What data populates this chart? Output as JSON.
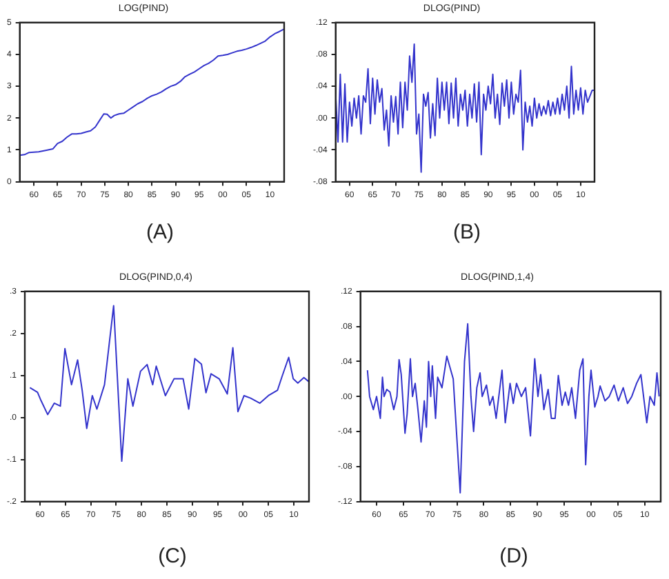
{
  "chart_data": [
    {
      "type": "line",
      "title": "LOG(PIND)",
      "annotations": [
        "(A)"
      ],
      "grid": false,
      "legend": false,
      "xlim": [
        1957,
        2013
      ],
      "xticks": [
        {
          "value": 1960,
          "label": "60"
        },
        {
          "value": 1965,
          "label": "65"
        },
        {
          "value": 1970,
          "label": "70"
        },
        {
          "value": 1975,
          "label": "75"
        },
        {
          "value": 1980,
          "label": "80"
        },
        {
          "value": 1985,
          "label": "85"
        },
        {
          "value": 1990,
          "label": "90"
        },
        {
          "value": 1995,
          "label": "95"
        },
        {
          "value": 2000,
          "label": "00"
        },
        {
          "value": 2005,
          "label": "05"
        },
        {
          "value": 2010,
          "label": "10"
        }
      ],
      "ylim": [
        0,
        5
      ],
      "yticks": [
        0,
        1,
        2,
        3,
        4,
        5
      ],
      "series": [
        {
          "color": "#3333cc",
          "x": [
            1957,
            1958,
            1959,
            1961,
            1963,
            1964,
            1965,
            1966,
            1967,
            1968,
            1969,
            1970,
            1971,
            1972,
            1973,
            1974,
            1974.8,
            1975.5,
            1976.3,
            1977,
            1978,
            1979,
            1980,
            1981,
            1982,
            1983,
            1984,
            1985,
            1986,
            1987,
            1988,
            1989,
            1990,
            1991,
            1992,
            1993,
            1994,
            1995,
            1996,
            1997,
            1998,
            1999,
            2000,
            2001,
            2002,
            2003,
            2004,
            2005,
            2006,
            2007,
            2008,
            2009,
            2010,
            2011,
            2012,
            2013
          ],
          "values": [
            0.83,
            0.85,
            0.92,
            0.94,
            1.0,
            1.03,
            1.2,
            1.27,
            1.4,
            1.5,
            1.5,
            1.52,
            1.56,
            1.6,
            1.72,
            1.95,
            2.13,
            2.12,
            2.0,
            2.08,
            2.13,
            2.15,
            2.25,
            2.35,
            2.45,
            2.52,
            2.62,
            2.7,
            2.75,
            2.82,
            2.92,
            3.0,
            3.05,
            3.15,
            3.3,
            3.38,
            3.45,
            3.55,
            3.65,
            3.72,
            3.82,
            3.95,
            3.97,
            4.0,
            4.05,
            4.1,
            4.13,
            4.17,
            4.22,
            4.28,
            4.35,
            4.42,
            4.55,
            4.65,
            4.72,
            4.8
          ]
        }
      ]
    },
    {
      "type": "line",
      "title": "DLOG(PIND)",
      "annotations": [
        "(B)"
      ],
      "grid": false,
      "legend": false,
      "xlim": [
        1957,
        2013
      ],
      "xticks": [
        {
          "value": 1960,
          "label": "60"
        },
        {
          "value": 1965,
          "label": "65"
        },
        {
          "value": 1970,
          "label": "70"
        },
        {
          "value": 1975,
          "label": "75"
        },
        {
          "value": 1980,
          "label": "80"
        },
        {
          "value": 1985,
          "label": "85"
        },
        {
          "value": 1990,
          "label": "90"
        },
        {
          "value": 1995,
          "label": "95"
        },
        {
          "value": 2000,
          "label": "00"
        },
        {
          "value": 2005,
          "label": "05"
        },
        {
          "value": 2010,
          "label": "10"
        }
      ],
      "ylim": [
        -0.08,
        0.12
      ],
      "yticks": [
        {
          "value": -0.08,
          "label": "-.08"
        },
        {
          "value": -0.04,
          "label": "-.04"
        },
        {
          "value": 0,
          "label": ".00"
        },
        {
          "value": 0.04,
          "label": ".04"
        },
        {
          "value": 0.08,
          "label": ".08"
        },
        {
          "value": 0.12,
          "label": ".12"
        }
      ],
      "series": [
        {
          "color": "#3333cc",
          "x": [
            1957,
            1957.5,
            1958,
            1958.5,
            1959,
            1959.5,
            1960,
            1960.5,
            1961,
            1961.5,
            1962,
            1962.5,
            1963,
            1963.5,
            1964,
            1964.5,
            1965,
            1965.5,
            1966,
            1966.5,
            1967,
            1967.5,
            1968,
            1968.5,
            1969,
            1969.5,
            1970,
            1970.5,
            1971,
            1971.5,
            1972,
            1972.5,
            1973,
            1973.5,
            1974,
            1974.5,
            1975,
            1975.5,
            1976,
            1976.5,
            1977,
            1977.5,
            1978,
            1978.5,
            1979,
            1979.5,
            1980,
            1980.5,
            1981,
            1981.5,
            1982,
            1982.5,
            1983,
            1983.5,
            1984,
            1984.5,
            1985,
            1985.5,
            1986,
            1986.5,
            1987,
            1987.5,
            1988,
            1988.5,
            1989,
            1989.5,
            1990,
            1990.5,
            1991,
            1991.5,
            1992,
            1992.5,
            1993,
            1993.5,
            1994,
            1994.5,
            1995,
            1995.5,
            1996,
            1996.5,
            1997,
            1997.5,
            1998,
            1998.5,
            1999,
            1999.5,
            2000,
            2000.5,
            2001,
            2001.5,
            2002,
            2002.5,
            2003,
            2003.5,
            2004,
            2004.5,
            2005,
            2005.5,
            2006,
            2006.5,
            2007,
            2007.5,
            2008,
            2008.5,
            2009,
            2009.5,
            2010,
            2010.5,
            2011,
            2011.5,
            2012.5,
            2013
          ],
          "values": [
            0.03,
            -0.03,
            0.055,
            -0.03,
            0.043,
            -0.03,
            0.02,
            -0.01,
            0.025,
            0.0,
            0.028,
            -0.02,
            0.028,
            0.02,
            0.062,
            -0.007,
            0.05,
            0.005,
            0.048,
            0.02,
            0.037,
            -0.015,
            0.01,
            -0.035,
            0.028,
            -0.005,
            0.027,
            -0.02,
            0.045,
            -0.012,
            0.045,
            0.01,
            0.078,
            0.045,
            0.093,
            -0.02,
            0.005,
            -0.068,
            0.03,
            0.015,
            0.032,
            -0.025,
            0.018,
            -0.022,
            0.05,
            0.0,
            0.045,
            0.01,
            0.045,
            -0.007,
            0.044,
            0.0,
            0.05,
            -0.01,
            0.03,
            0.01,
            0.035,
            -0.01,
            0.03,
            0.0,
            0.043,
            -0.005,
            0.045,
            -0.046,
            0.03,
            0.01,
            0.04,
            0.018,
            0.055,
            0.0,
            0.03,
            -0.008,
            0.044,
            0.015,
            0.048,
            0.0,
            0.045,
            0.005,
            0.03,
            0.02,
            0.06,
            -0.04,
            0.02,
            -0.005,
            0.015,
            -0.01,
            0.025,
            0.0,
            0.018,
            0.003,
            0.015,
            0.005,
            0.022,
            0.003,
            0.02,
            0.005,
            0.025,
            0.005,
            0.03,
            0.01,
            0.04,
            0.0,
            0.065,
            0.005,
            0.035,
            0.01,
            0.038,
            0.005,
            0.035,
            0.02,
            0.035,
            0.035
          ]
        }
      ]
    },
    {
      "type": "line",
      "title": "DLOG(PIND,0,4)",
      "annotations": [
        "(C)"
      ],
      "grid": false,
      "legend": false,
      "xlim": [
        1957,
        2013
      ],
      "xticks": [
        {
          "value": 1960,
          "label": "60"
        },
        {
          "value": 1965,
          "label": "65"
        },
        {
          "value": 1970,
          "label": "70"
        },
        {
          "value": 1975,
          "label": "75"
        },
        {
          "value": 1980,
          "label": "80"
        },
        {
          "value": 1985,
          "label": "85"
        },
        {
          "value": 1990,
          "label": "90"
        },
        {
          "value": 1995,
          "label": "95"
        },
        {
          "value": 2000,
          "label": "00"
        },
        {
          "value": 2005,
          "label": "05"
        },
        {
          "value": 2010,
          "label": "10"
        }
      ],
      "ylim": [
        -0.2,
        0.3
      ],
      "yticks": [
        {
          "value": -0.2,
          "label": "-.2"
        },
        {
          "value": -0.1,
          "label": "-.1"
        },
        {
          "value": 0,
          "label": ".0"
        },
        {
          "value": 0.1,
          "label": ".1"
        },
        {
          "value": 0.2,
          "label": ".2"
        },
        {
          "value": 0.3,
          "label": ".3"
        }
      ],
      "series": [
        {
          "color": "#3333cc",
          "x": [
            1958,
            1959.5,
            1960.2,
            1961.5,
            1962.8,
            1964,
            1964.9,
            1966.2,
            1967.4,
            1968.3,
            1969.2,
            1970.3,
            1971.2,
            1972.7,
            1974.5,
            1976.1,
            1977.3,
            1978.3,
            1979.8,
            1981.1,
            1982.2,
            1982.9,
            1984.7,
            1986.4,
            1988.2,
            1989.3,
            1990.5,
            1991.8,
            1992.7,
            1993.7,
            1995.3,
            1996.9,
            1998,
            1999,
            2000.2,
            2001.5,
            2003.3,
            2005,
            2006.8,
            2007.7,
            2009,
            2009.9,
            2010.8,
            2012,
            2013
          ],
          "values": [
            0.071,
            0.06,
            0.04,
            0.007,
            0.034,
            0.027,
            0.164,
            0.078,
            0.137,
            0.065,
            -0.026,
            0.052,
            0.02,
            0.078,
            0.266,
            -0.104,
            0.092,
            0.027,
            0.11,
            0.126,
            0.078,
            0.122,
            0.052,
            0.092,
            0.092,
            0.02,
            0.14,
            0.127,
            0.059,
            0.104,
            0.092,
            0.056,
            0.166,
            0.014,
            0.052,
            0.046,
            0.034,
            0.052,
            0.065,
            0.098,
            0.143,
            0.092,
            0.082,
            0.095,
            0.085
          ]
        }
      ]
    },
    {
      "type": "line",
      "title": "DLOG(PIND,1,4)",
      "annotations": [
        "(D)"
      ],
      "grid": false,
      "legend": false,
      "xlim": [
        1957,
        2013
      ],
      "xticks": [
        {
          "value": 1960,
          "label": "60"
        },
        {
          "value": 1965,
          "label": "65"
        },
        {
          "value": 1970,
          "label": "70"
        },
        {
          "value": 1975,
          "label": "75"
        },
        {
          "value": 1980,
          "label": "80"
        },
        {
          "value": 1985,
          "label": "85"
        },
        {
          "value": 1990,
          "label": "90"
        },
        {
          "value": 1995,
          "label": "95"
        },
        {
          "value": 2000,
          "label": "00"
        },
        {
          "value": 2005,
          "label": "05"
        },
        {
          "value": 2010,
          "label": "10"
        }
      ],
      "ylim": [
        -0.12,
        0.12
      ],
      "yticks": [
        {
          "value": -0.12,
          "label": "-.12"
        },
        {
          "value": -0.08,
          "label": "-.08"
        },
        {
          "value": -0.04,
          "label": "-.04"
        },
        {
          "value": 0,
          "label": ".00"
        },
        {
          "value": 0.04,
          "label": ".04"
        },
        {
          "value": 0.08,
          "label": ".08"
        },
        {
          "value": 0.12,
          "label": ".12"
        }
      ],
      "series": [
        {
          "color": "#3333cc",
          "x": [
            1958.3,
            1958.7,
            1959.4,
            1960,
            1960.7,
            1961.1,
            1961.4,
            1961.9,
            1962.5,
            1963.2,
            1963.8,
            1964.2,
            1964.6,
            1965.3,
            1965.7,
            1966.3,
            1966.7,
            1967.2,
            1967.8,
            1968.3,
            1968.9,
            1969.3,
            1969.7,
            1970.1,
            1970.4,
            1971,
            1971.4,
            1972.2,
            1973.1,
            1974.3,
            1975.6,
            1976.4,
            1977,
            1977.6,
            1978.1,
            1978.7,
            1979.3,
            1979.7,
            1980.5,
            1981.1,
            1981.7,
            1982.3,
            1983.4,
            1984,
            1984.9,
            1985.5,
            1986.1,
            1987,
            1987.8,
            1988.7,
            1989.5,
            1990.1,
            1990.6,
            1991.2,
            1992,
            1992.6,
            1993.3,
            1993.9,
            1994.6,
            1995.2,
            1995.8,
            1996.4,
            1997.1,
            1997.9,
            1998.5,
            1999,
            1999.6,
            2000,
            2000.7,
            2001.3,
            2001.7,
            2002.6,
            2003.4,
            2004.3,
            2005.1,
            2006,
            2006.8,
            2007.6,
            2008.5,
            2009.3,
            2010.4,
            2011,
            2011.8,
            2012.3,
            2012.7
          ],
          "values": [
            0.03,
            0.0,
            -0.015,
            0.0,
            -0.025,
            0.022,
            0.0,
            0.008,
            0.005,
            -0.015,
            0.0,
            0.042,
            0.025,
            -0.042,
            -0.02,
            0.043,
            0.0,
            0.015,
            -0.02,
            -0.052,
            -0.005,
            -0.035,
            0.04,
            0.0,
            0.035,
            -0.025,
            0.022,
            0.01,
            0.046,
            0.02,
            -0.11,
            0.04,
            0.083,
            0.0,
            -0.04,
            0.01,
            0.027,
            0.0,
            0.013,
            -0.01,
            0.0,
            -0.025,
            0.03,
            -0.03,
            0.015,
            -0.008,
            0.015,
            0.0,
            0.01,
            -0.045,
            0.043,
            0.0,
            0.025,
            -0.015,
            0.008,
            -0.025,
            -0.025,
            0.024,
            -0.01,
            0.005,
            -0.01,
            0.01,
            -0.025,
            0.03,
            0.043,
            -0.078,
            0.0,
            0.03,
            -0.012,
            0.0,
            0.012,
            -0.005,
            0.0,
            0.013,
            -0.005,
            0.01,
            -0.008,
            0.0,
            0.015,
            0.025,
            -0.03,
            0.0,
            -0.01,
            0.027,
            0.0
          ]
        }
      ]
    }
  ]
}
